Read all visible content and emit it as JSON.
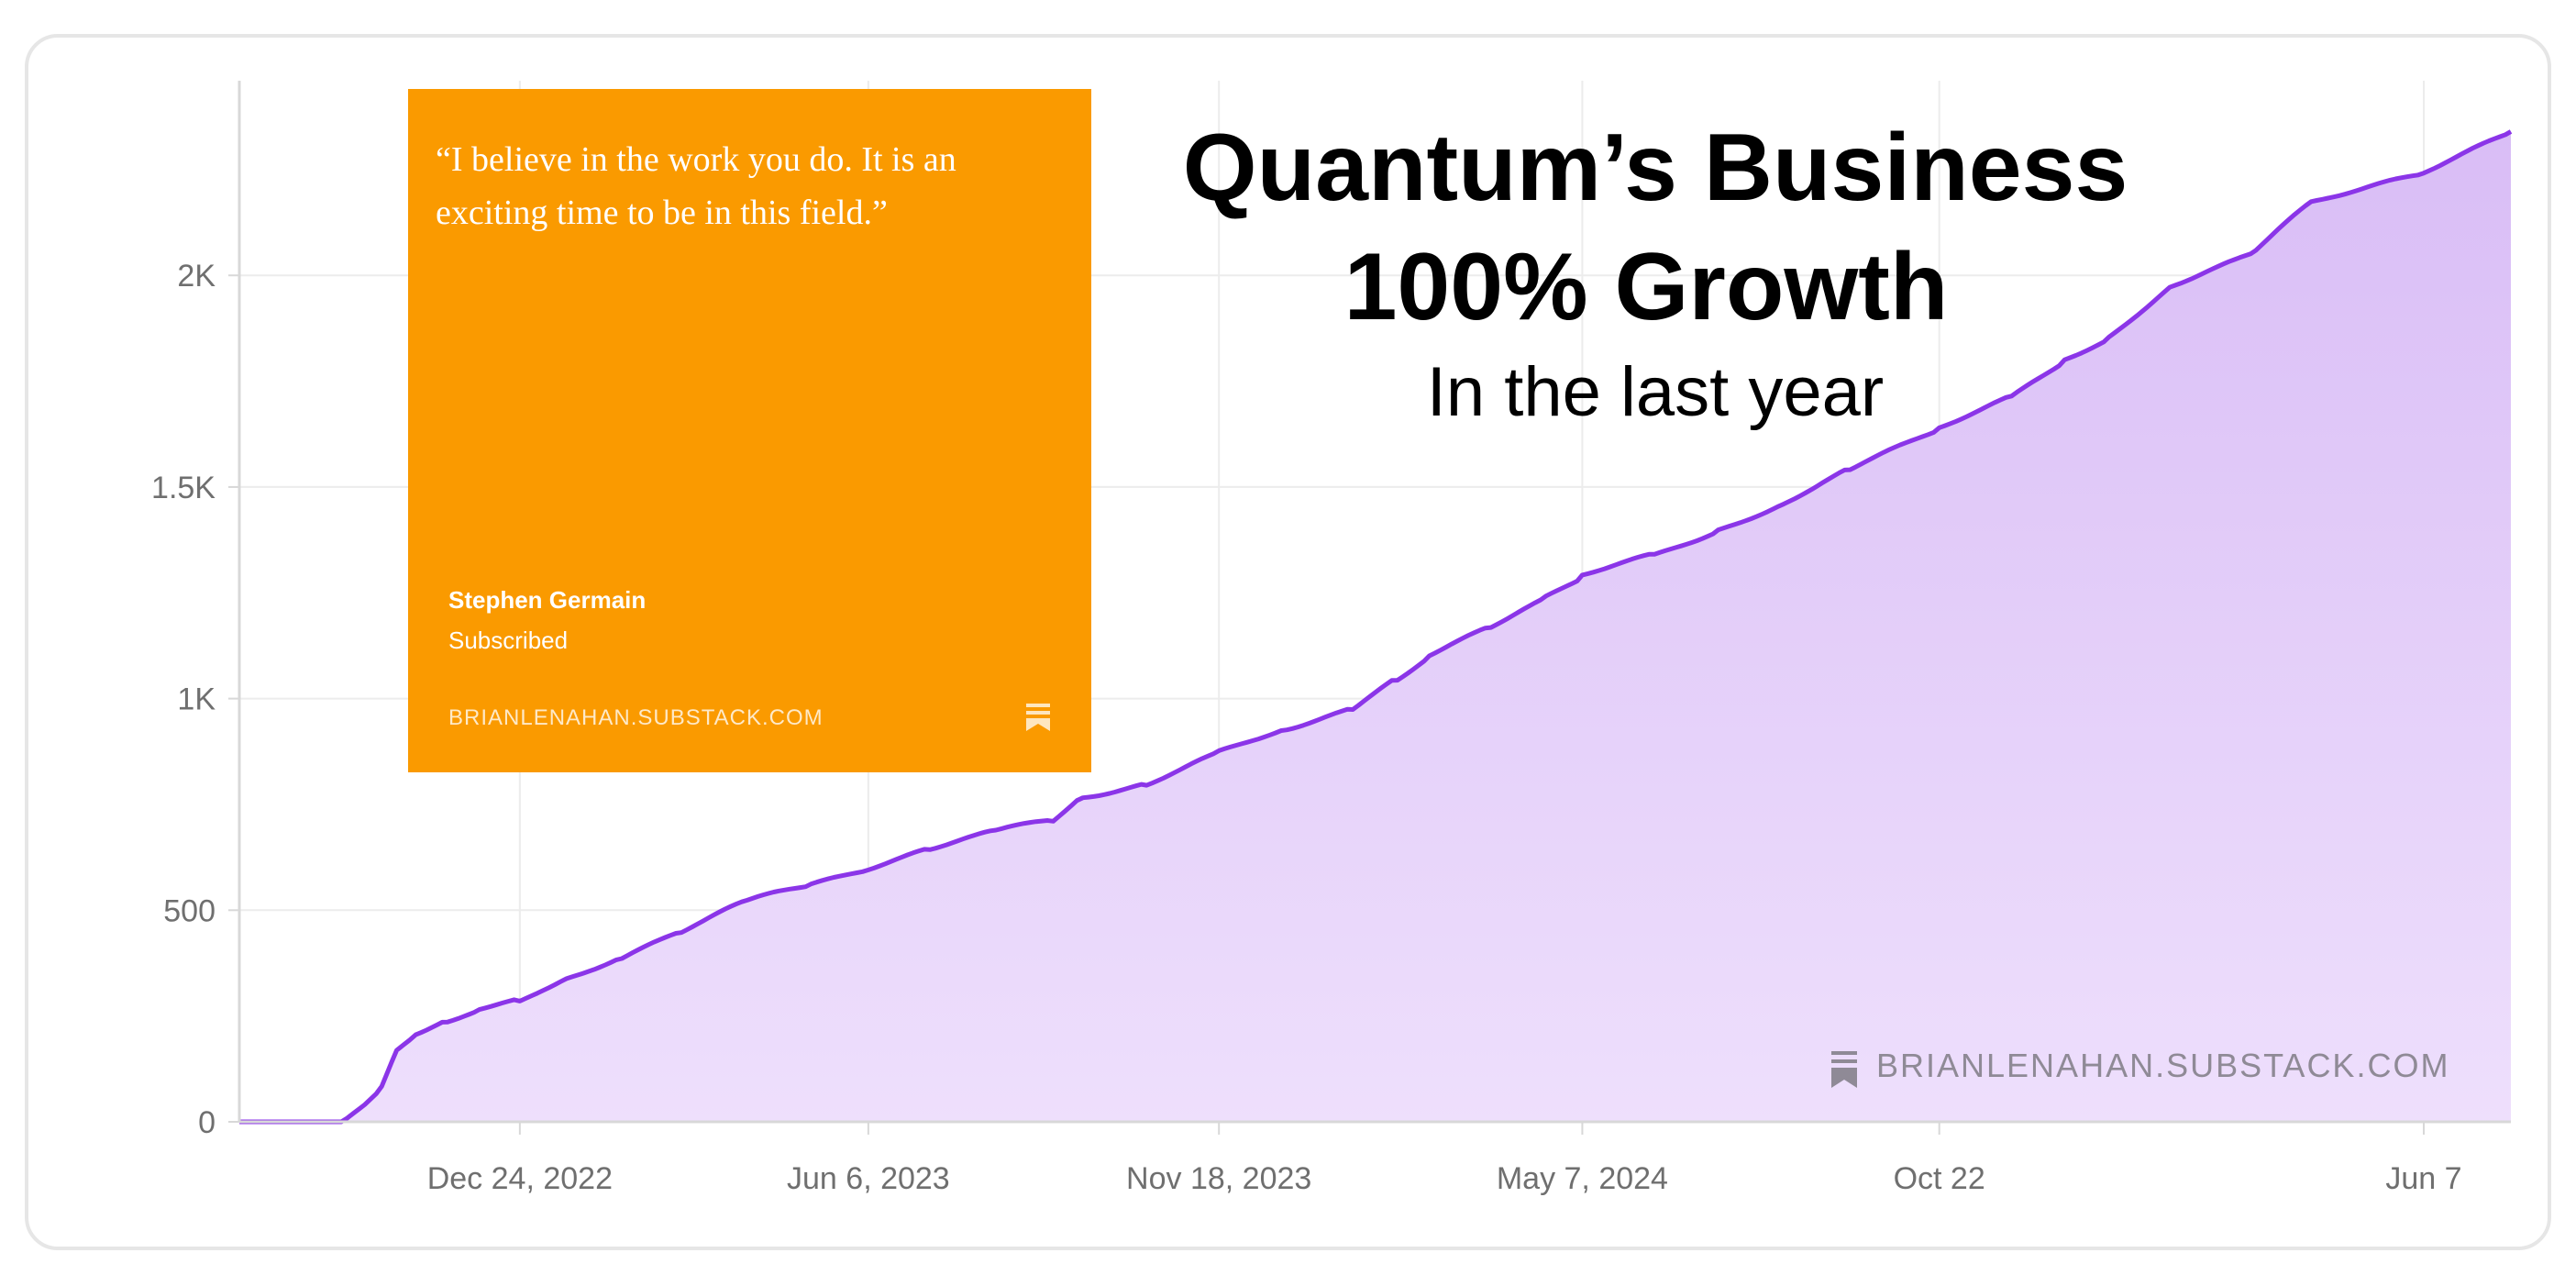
{
  "chart_data": {
    "type": "area",
    "title": "Quantum’s Business",
    "title_line2": "100% Growth",
    "subtitle": "In the last year",
    "xlabel": "",
    "ylabel": "",
    "x_tick_labels": [
      "Dec 24, 2022",
      "Jun 6, 2023",
      "Nov 18, 2023",
      "May 7, 2024",
      "Oct 22",
      "Jun 7"
    ],
    "y_tick_labels": [
      "0",
      "500",
      "1K",
      "1.5K",
      "2K"
    ],
    "ylim": [
      0,
      2460
    ],
    "grid": true,
    "series": [
      {
        "x": [
          "2022-08-14",
          "2022-10-01",
          "2022-10-12",
          "2022-10-20",
          "2022-10-27",
          "2022-11-05",
          "2022-11-20",
          "2022-12-05",
          "2022-12-24",
          "2023-01-15",
          "2023-02-10",
          "2023-03-10",
          "2023-04-10",
          "2023-05-10",
          "2023-06-06",
          "2023-07-05",
          "2023-08-05",
          "2023-09-01",
          "2023-09-15",
          "2023-10-15",
          "2023-11-18",
          "2023-12-20",
          "2024-01-20",
          "2024-02-10",
          "2024-02-25",
          "2024-03-25",
          "2024-04-20",
          "2024-05-07",
          "2024-06-10",
          "2024-07-10",
          "2024-08-10",
          "2024-09-10",
          "2024-10-22",
          "2024-11-25",
          "2024-12-20",
          "2025-01-10",
          "2025-02-10",
          "2025-03-20",
          "2025-04-15",
          "2025-06-07",
          "2025-07-18"
        ],
        "values": [
          0,
          0,
          40,
          80,
          170,
          210,
          240,
          265,
          285,
          340,
          390,
          450,
          520,
          560,
          600,
          650,
          690,
          710,
          770,
          800,
          870,
          930,
          980,
          1050,
          1100,
          1170,
          1240,
          1290,
          1340,
          1400,
          1460,
          1540,
          1640,
          1710,
          1800,
          1850,
          1980,
          2060,
          2170,
          2240,
          2340
        ]
      }
    ],
    "colors": {
      "line": "#8B35E8",
      "fill_top": "#D9BDF6",
      "fill_bottom": "#EEDFFC",
      "grid": "#ececec",
      "tick_text": "#6f6f6f"
    }
  },
  "quote_card": {
    "quote": "“I believe in the work you do. It is an exciting time to be in this field.”",
    "author": "Stephen Germain",
    "status": "Subscribed",
    "domain": "BRIANLENAHAN.SUBSTACK.COM",
    "background": "#FA9A00",
    "icon": "bookmark-icon"
  },
  "watermark": {
    "text": "BRIANLENAHAN.SUBSTACK.COM",
    "icon": "bookmark-icon"
  }
}
